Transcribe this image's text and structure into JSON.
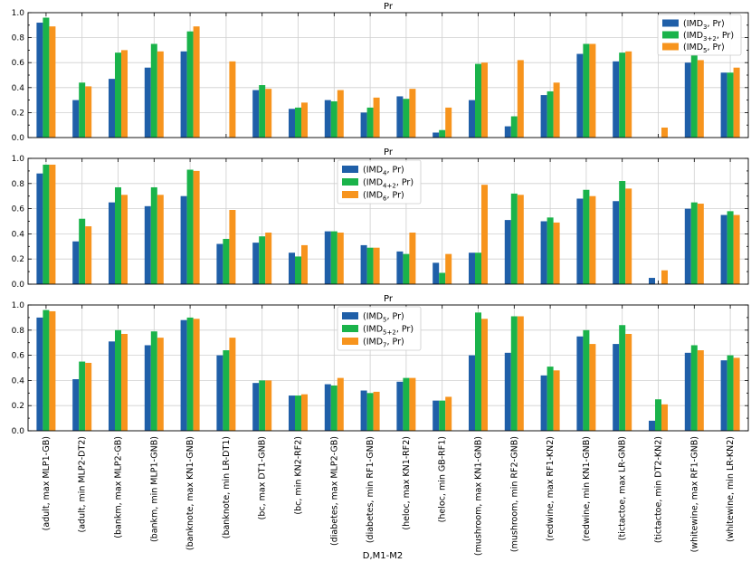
{
  "colors": {
    "blue": "#1f5fa8",
    "green": "#1ab34a",
    "orange": "#f7941d"
  },
  "chart_data": {
    "type": "bar",
    "xlabel": "D,M1-M2",
    "ylim": [
      0,
      1.0
    ],
    "yticks": [
      "0.0",
      "0.2",
      "0.4",
      "0.6",
      "0.8",
      "1.0"
    ],
    "grid": true,
    "categories": [
      "(adult, max MLP1-GB)",
      "(adult, min MLP2-DT2)",
      "(bankm, max MLP2-GB)",
      "(bankm, min MLP1-GNB)",
      "(banknote, max KN1-GNB)",
      "(banknote, min LR-DT1)",
      "(bc, max DT1-GNB)",
      "(bc, min KN2-RF2)",
      "(diabetes, max MLP2-GB)",
      "(diabetes, min RF1-GNB)",
      "(heloc, max KN1-RF2)",
      "(heloc, min GB-RF1)",
      "(mushroom, max KN1-GNB)",
      "(mushroom, min RF2-GNB)",
      "(redwine, max RF1-KN2)",
      "(redwine, min KN1-GNB)",
      "(tictactoe, max LR-GNB)",
      "(tictactoe, min DT2-KN2)",
      "(whitewine, max RF1-GNB)",
      "(whitewine, min LR-KN2)"
    ],
    "panels": [
      {
        "title": "Pr",
        "legend_position": "top-right",
        "series": [
          {
            "base": "(IMD",
            "sub": "3",
            "tail": ", Pr)",
            "color": "blue",
            "values": [
              0.92,
              0.3,
              0.47,
              0.56,
              0.69,
              0,
              0.38,
              0.23,
              0.3,
              0.2,
              0.33,
              0.04,
              0.3,
              0.09,
              0.34,
              0.67,
              0.61,
              0,
              0.6,
              0.52
            ]
          },
          {
            "base": "(IMD",
            "sub": "3+2",
            "tail": ", Pr)",
            "color": "green",
            "values": [
              0.96,
              0.44,
              0.68,
              0.75,
              0.85,
              0,
              0.42,
              0.24,
              0.29,
              0.24,
              0.31,
              0.06,
              0.59,
              0.17,
              0.37,
              0.75,
              0.68,
              0,
              0.66,
              0.52
            ]
          },
          {
            "base": "(IMD",
            "sub": "5",
            "tail": ", Pr)",
            "color": "orange",
            "values": [
              0.89,
              0.41,
              0.7,
              0.69,
              0.89,
              0.61,
              0.39,
              0.28,
              0.38,
              0.32,
              0.39,
              0.24,
              0.6,
              0.62,
              0.44,
              0.75,
              0.69,
              0.08,
              0.62,
              0.56
            ]
          }
        ]
      },
      {
        "title": "Pr",
        "legend_position": "upper-center",
        "series": [
          {
            "base": "(IMD",
            "sub": "4",
            "tail": ", Pr)",
            "color": "blue",
            "values": [
              0.88,
              0.34,
              0.65,
              0.62,
              0.7,
              0.32,
              0.33,
              0.25,
              0.42,
              0.31,
              0.26,
              0.17,
              0.25,
              0.51,
              0.5,
              0.68,
              0.66,
              0.05,
              0.6,
              0.55
            ]
          },
          {
            "base": "(IMD",
            "sub": "4+2",
            "tail": ", Pr)",
            "color": "green",
            "values": [
              0.95,
              0.52,
              0.77,
              0.77,
              0.91,
              0.36,
              0.38,
              0.22,
              0.42,
              0.29,
              0.24,
              0.09,
              0.25,
              0.72,
              0.53,
              0.75,
              0.82,
              0,
              0.65,
              0.58
            ]
          },
          {
            "base": "(IMD",
            "sub": "6",
            "tail": ", Pr)",
            "color": "orange",
            "values": [
              0.95,
              0.46,
              0.71,
              0.71,
              0.9,
              0.59,
              0.41,
              0.31,
              0.41,
              0.29,
              0.41,
              0.24,
              0.79,
              0.71,
              0.49,
              0.7,
              0.76,
              0.11,
              0.64,
              0.55
            ]
          }
        ]
      },
      {
        "title": "Pr",
        "legend_position": "upper-center",
        "series": [
          {
            "base": "(IMD",
            "sub": "5",
            "tail": ", Pr)",
            "color": "blue",
            "values": [
              0.9,
              0.41,
              0.71,
              0.68,
              0.88,
              0.6,
              0.38,
              0.28,
              0.37,
              0.32,
              0.39,
              0.24,
              0.6,
              0.62,
              0.44,
              0.75,
              0.69,
              0.08,
              0.62,
              0.56
            ]
          },
          {
            "base": "(IMD",
            "sub": "5+2",
            "tail": ", Pr)",
            "color": "green",
            "values": [
              0.96,
              0.55,
              0.8,
              0.79,
              0.9,
              0.64,
              0.4,
              0.28,
              0.36,
              0.3,
              0.42,
              0.24,
              0.94,
              0.91,
              0.51,
              0.8,
              0.84,
              0.25,
              0.68,
              0.6
            ]
          },
          {
            "base": "(IMD",
            "sub": "7",
            "tail": ", Pr)",
            "color": "orange",
            "values": [
              0.95,
              0.54,
              0.77,
              0.74,
              0.89,
              0.74,
              0.4,
              0.29,
              0.42,
              0.31,
              0.42,
              0.27,
              0.89,
              0.91,
              0.48,
              0.69,
              0.77,
              0.21,
              0.64,
              0.58
            ]
          }
        ]
      }
    ]
  }
}
